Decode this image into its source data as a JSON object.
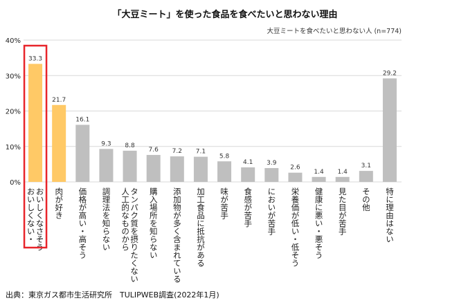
{
  "chart_data": {
    "type": "bar",
    "title": "「大豆ミート」を使った食品を食べたいと思わない理由",
    "legend_text": "大豆ミートを食べたいと思わない人 (n=774)",
    "y_unit": "%",
    "ylim": [
      0,
      40
    ],
    "yticks": [
      "0%",
      "10%",
      "20%",
      "30%",
      "40%"
    ],
    "grid": true,
    "categories": [
      "おいしくない・おいしくなさそう",
      "肉が好き",
      "価格が高い・高そう",
      "調理法を知らない",
      "人工的なものからタンパク質を摂りたくない",
      "購入場所を知らない",
      "添加物が多く含まれている",
      "加工食品に抵抗がある",
      "味が苦手",
      "食感が苦手",
      "においが苦手",
      "栄養価が低い・低そう",
      "健康に悪い・悪そう",
      "見た目が苦手",
      "その他",
      "特に理由はない"
    ],
    "label_columns": [
      [
        "おいしくない・",
        "おいしくなさそう"
      ],
      [
        "肉が好き"
      ],
      [
        "価格が高い・高そう"
      ],
      [
        "調理法を知らない"
      ],
      [
        "人工的なものから",
        "タンパク質を摂りたくない"
      ],
      [
        "購入場所を知らない"
      ],
      [
        "添加物が多く含まれている"
      ],
      [
        "加工食品に抵抗がある"
      ],
      [
        "味が苦手"
      ],
      [
        "食感が苦手"
      ],
      [
        "においが苦手"
      ],
      [
        "栄養価が低い・低そう"
      ],
      [
        "健康に悪い・悪そう"
      ],
      [
        "見た目が苦手"
      ],
      [
        "その他"
      ],
      [
        "特に理由はない"
      ]
    ],
    "values": [
      33.3,
      21.7,
      16.1,
      9.3,
      8.8,
      7.6,
      7.2,
      7.1,
      5.8,
      4.1,
      3.9,
      2.6,
      1.4,
      1.4,
      3.1,
      29.2
    ],
    "highlighted": [
      0,
      1
    ],
    "boxed_category": 0,
    "colors": {
      "highlight": "#FFC966",
      "default": "#BFBFBF",
      "box": "#E8242A",
      "grid": "#D9D9D9"
    }
  },
  "source": "出典：東京ガス都市生活研究所　TULIPWEB調査(2022年1月)"
}
